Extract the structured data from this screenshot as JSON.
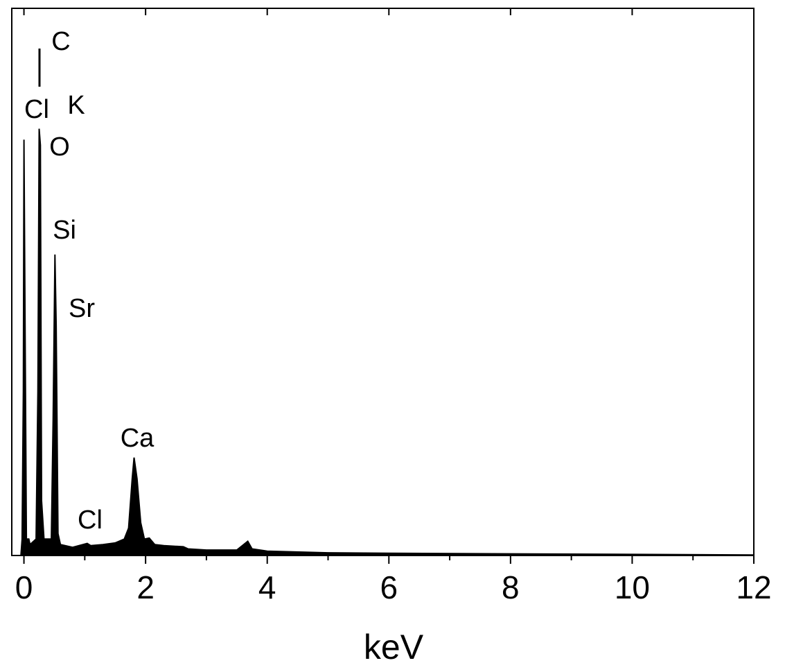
{
  "chart_data": {
    "type": "area",
    "x_label": "keV",
    "xlim": [
      -0.2,
      12
    ],
    "ylim": [
      0,
      100
    ],
    "xticks": [
      0,
      2,
      4,
      6,
      8,
      10,
      12
    ],
    "xminor": [
      1,
      3,
      5,
      7,
      9,
      11
    ],
    "color": "#000000",
    "annotations": [
      "C",
      "Cl",
      "K",
      "O",
      "Si",
      "Sr",
      "Ca",
      "Cl"
    ],
    "x": [
      -0.05,
      -0.03,
      -0.01,
      0,
      0.02,
      0.04,
      0.08,
      0.1,
      0.2,
      0.23,
      0.25,
      0.27,
      0.29,
      0.33,
      0.45,
      0.48,
      0.51,
      0.53,
      0.56,
      0.6,
      0.8,
      1.04,
      1.1,
      1.3,
      1.5,
      1.65,
      1.72,
      1.78,
      1.81,
      1.86,
      1.92,
      1.98,
      2.06,
      2.15,
      2.3,
      2.62,
      2.7,
      3.0,
      3.3,
      3.5,
      3.68,
      3.75,
      4.0,
      5,
      6,
      8,
      10,
      12
    ],
    "values": [
      0,
      3,
      30,
      76,
      40,
      3,
      3,
      2,
      3,
      30,
      78,
      75,
      10,
      3,
      3,
      25,
      55,
      42,
      4,
      2,
      1.5,
      2.2,
      1.8,
      2,
      2.3,
      3,
      5,
      14,
      17.9,
      14,
      6,
      3,
      3.2,
      2,
      1.8,
      1.6,
      1.2,
      1,
      1,
      1,
      2.6,
      1.2,
      0.8,
      0.5,
      0.4,
      0.3,
      0.2,
      0.1
    ]
  }
}
